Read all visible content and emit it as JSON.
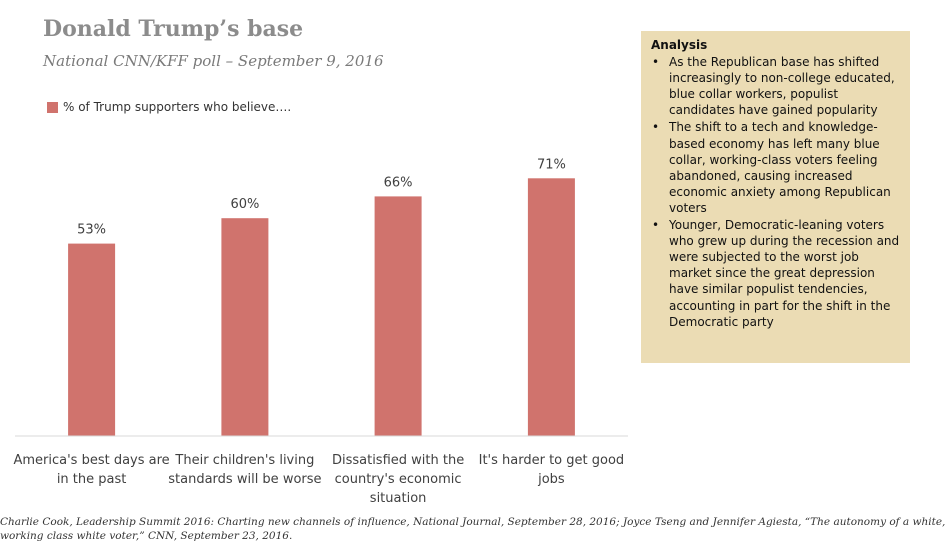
{
  "chart_data": {
    "type": "bar",
    "title": "Donald Trump’s base",
    "subtitle": "National CNN/KFF poll – September 9, 2016",
    "categories": [
      [
        "America's best days are",
        "in the past"
      ],
      [
        "Their children's living",
        "standards will be worse"
      ],
      [
        "Dissatisfied with the",
        "country's economic",
        "situation"
      ],
      [
        "It's harder to get good",
        "jobs"
      ]
    ],
    "series": [
      {
        "name": "% of Trump supporters who believe….",
        "values": [
          53,
          60,
          66,
          71
        ],
        "labels": [
          "53%",
          "60%",
          "66%",
          "71%"
        ]
      }
    ],
    "ylim": [
      0,
      100
    ],
    "grid": false,
    "legend_position": "top-left",
    "bar_color": "#d0736d"
  },
  "analysis": {
    "title": "Analysis",
    "bullets": [
      "As the Republican base has shifted increasingly to non-college educated, blue collar workers, populist candidates have gained popularity",
      "The shift to a tech and knowledge-based economy has left many blue collar, working-class voters feeling abandoned, causing increased economic anxiety among Republican voters",
      "Younger, Democratic-leaning voters who grew up during the recession and were subjected to the worst job market since the great depression have similar populist tendencies, accounting in part for the shift in the Democratic party"
    ]
  },
  "footnote": {
    "line1": "Charlie Cook, Leadership Summit 2016: Charting new channels of influence, National Journal, September 28, 2016; Joyce Tseng and Jennifer Agiesta, “The autonomy of a white,",
    "line2": "working class white voter,” CNN, September 23, 2016."
  }
}
